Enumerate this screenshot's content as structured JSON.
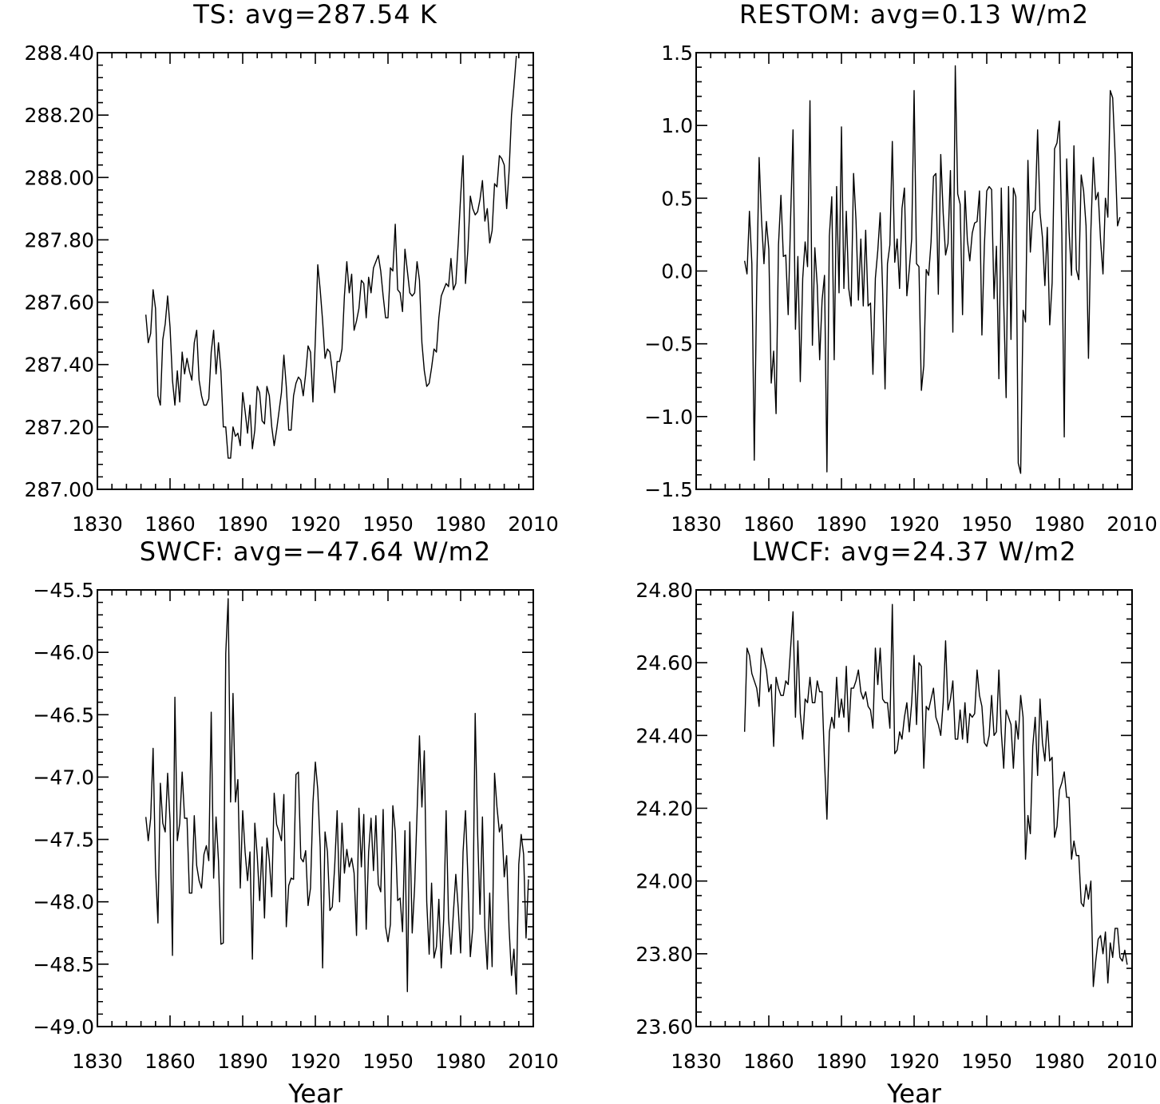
{
  "chart_data": [
    {
      "type": "line",
      "title": "TS: avg=287.54 K",
      "xlabel": "",
      "ylabel": "",
      "xlim": [
        1830,
        2010
      ],
      "ylim": [
        287.0,
        288.4
      ],
      "xticks": [
        "1830",
        "1860",
        "1890",
        "1920",
        "1950",
        "1980",
        "2010"
      ],
      "yticks": [
        "287.00",
        "287.20",
        "287.40",
        "287.60",
        "287.80",
        "288.00",
        "288.20",
        "288.40"
      ],
      "grid": false,
      "series": [
        {
          "x_start": 1850,
          "values": [
            287.56,
            287.47,
            287.5,
            287.64,
            287.58,
            287.3,
            287.27,
            287.48,
            287.53,
            287.62,
            287.52,
            287.35,
            287.27,
            287.38,
            287.28,
            287.44,
            287.37,
            287.42,
            287.38,
            287.35,
            287.47,
            287.51,
            287.35,
            287.3,
            287.27,
            287.27,
            287.29,
            287.44,
            287.51,
            287.37,
            287.47,
            287.38,
            287.2,
            287.2,
            287.1,
            287.1,
            287.2,
            287.17,
            287.18,
            287.14,
            287.31,
            287.25,
            287.18,
            287.27,
            287.13,
            287.19,
            287.33,
            287.31,
            287.22,
            287.21,
            287.33,
            287.3,
            287.2,
            287.14,
            287.19,
            287.25,
            287.31,
            287.43,
            287.33,
            287.19,
            287.19,
            287.3,
            287.34,
            287.36,
            287.35,
            287.3,
            287.37,
            287.46,
            287.44,
            287.28,
            287.48,
            287.72,
            287.64,
            287.54,
            287.42,
            287.45,
            287.44,
            287.38,
            287.31,
            287.41,
            287.41,
            287.45,
            287.62,
            287.73,
            287.63,
            287.69,
            287.51,
            287.54,
            287.58,
            287.67,
            287.66,
            287.55,
            287.68,
            287.63,
            287.71,
            287.73,
            287.75,
            287.7,
            287.62,
            287.55,
            287.55,
            287.71,
            287.7,
            287.85,
            287.64,
            287.63,
            287.57,
            287.77,
            287.7,
            287.63,
            287.62,
            287.63,
            287.73,
            287.67,
            287.47,
            287.38,
            287.33,
            287.34,
            287.39,
            287.45,
            287.44,
            287.55,
            287.62,
            287.64,
            287.66,
            287.65,
            287.74,
            287.64,
            287.66,
            287.79,
            287.94,
            288.07,
            287.66,
            287.77,
            287.94,
            287.9,
            287.88,
            287.89,
            287.93,
            287.99,
            287.86,
            287.9,
            287.79,
            287.83,
            287.98,
            287.97,
            288.07,
            288.06,
            288.04,
            287.9,
            288.02,
            288.2,
            288.29,
            288.39
          ]
        }
      ]
    },
    {
      "type": "line",
      "title": "RESTOM: avg=0.13 W/m2",
      "xlabel": "",
      "ylabel": "",
      "xlim": [
        1830,
        2010
      ],
      "ylim": [
        -1.5,
        1.5
      ],
      "xticks": [
        "1830",
        "1860",
        "1890",
        "1920",
        "1950",
        "1980",
        "2010"
      ],
      "yticks": [
        "−1.5",
        "−1.0",
        "−0.5",
        "0.0",
        "0.5",
        "1.0",
        "1.5"
      ],
      "grid": false,
      "series": [
        {
          "x_start": 1850,
          "values": [
            0.07,
            -0.02,
            0.41,
            0.05,
            -1.3,
            -0.1,
            0.78,
            0.35,
            0.05,
            0.34,
            0.15,
            -0.77,
            -0.55,
            -0.98,
            0.18,
            0.52,
            0.1,
            0.11,
            -0.3,
            0.36,
            0.97,
            -0.4,
            0.1,
            -0.76,
            -0.05,
            0.2,
            0.03,
            1.17,
            -0.51,
            0.16,
            -0.1,
            -0.61,
            -0.2,
            -0.03,
            -1.38,
            0.24,
            0.51,
            -0.61,
            0.58,
            -0.15,
            0.99,
            -0.12,
            0.41,
            -0.12,
            -0.24,
            0.67,
            0.35,
            -0.2,
            0.22,
            -0.24,
            0.28,
            -0.24,
            -0.22,
            -0.71,
            -0.05,
            0.14,
            0.4,
            -0.13,
            -0.81,
            0.05,
            0.18,
            0.89,
            0.06,
            0.22,
            -0.12,
            0.43,
            0.57,
            -0.17,
            0.01,
            0.22,
            1.24,
            0.05,
            0.03,
            -0.82,
            -0.65,
            0.01,
            -0.03,
            0.2,
            0.65,
            0.67,
            -0.16,
            0.8,
            0.4,
            0.11,
            0.19,
            0.69,
            -0.42,
            1.41,
            0.53,
            0.46,
            -0.3,
            0.55,
            0.21,
            0.07,
            0.26,
            0.33,
            0.34,
            0.55,
            -0.44,
            0.17,
            0.55,
            0.58,
            0.56,
            -0.19,
            0.17,
            -0.74,
            0.57,
            -0.22,
            -0.87,
            0.58,
            -0.47,
            0.57,
            0.51,
            -1.32,
            -1.39,
            -0.27,
            -0.35,
            0.76,
            0.13,
            0.4,
            0.42,
            0.97,
            0.4,
            0.23,
            -0.1,
            0.3,
            -0.37,
            -0.08,
            0.84,
            0.88,
            1.03,
            0.26,
            -1.14,
            0.77,
            0.27,
            -0.03,
            0.86,
            0.01,
            -0.06,
            0.66,
            0.55,
            0.31,
            -0.6,
            0.28,
            0.78,
            0.49,
            0.54,
            0.21,
            -0.02,
            0.5,
            0.37,
            1.24,
            1.19,
            0.8,
            0.31,
            0.37
          ]
        }
      ]
    },
    {
      "type": "line",
      "title": "SWCF: avg=−47.64 W/m2",
      "xlabel": "Year",
      "ylabel": "",
      "xlim": [
        1830,
        2010
      ],
      "ylim": [
        -49.0,
        -45.5
      ],
      "xticks": [
        "1830",
        "1860",
        "1890",
        "1920",
        "1950",
        "1980",
        "2010"
      ],
      "yticks": [
        "−49.0",
        "−48.5",
        "−48.0",
        "−47.5",
        "−47.0",
        "−46.5",
        "−46.0",
        "−45.5"
      ],
      "grid": false,
      "series": [
        {
          "x_start": 1850,
          "values": [
            -47.32,
            -47.51,
            -47.33,
            -46.77,
            -47.73,
            -48.17,
            -47.05,
            -47.37,
            -47.44,
            -46.97,
            -47.35,
            -48.43,
            -46.36,
            -47.51,
            -47.37,
            -46.96,
            -47.33,
            -47.33,
            -47.93,
            -47.93,
            -47.31,
            -47.71,
            -47.83,
            -47.89,
            -47.62,
            -47.55,
            -47.67,
            -46.48,
            -47.81,
            -47.32,
            -47.67,
            -48.34,
            -48.33,
            -46.01,
            -45.57,
            -47.2,
            -46.33,
            -47.2,
            -47.02,
            -47.89,
            -47.27,
            -47.6,
            -47.83,
            -47.6,
            -48.46,
            -47.37,
            -47.63,
            -47.99,
            -47.56,
            -48.13,
            -47.49,
            -47.67,
            -47.96,
            -47.13,
            -47.38,
            -47.44,
            -47.51,
            -47.14,
            -48.2,
            -47.87,
            -47.81,
            -47.82,
            -46.98,
            -46.96,
            -47.65,
            -47.68,
            -47.59,
            -48.03,
            -47.89,
            -47.21,
            -46.88,
            -47.1,
            -47.56,
            -48.53,
            -47.44,
            -47.6,
            -48.07,
            -48.04,
            -47.71,
            -47.27,
            -48.0,
            -47.37,
            -47.77,
            -47.58,
            -47.72,
            -47.65,
            -47.77,
            -48.27,
            -47.25,
            -47.72,
            -47.3,
            -48.22,
            -47.6,
            -47.33,
            -47.75,
            -47.31,
            -47.86,
            -47.92,
            -47.26,
            -48.2,
            -48.32,
            -48.18,
            -47.23,
            -47.44,
            -47.99,
            -47.97,
            -48.24,
            -47.43,
            -48.72,
            -47.36,
            -48.25,
            -47.88,
            -47.29,
            -46.67,
            -47.24,
            -46.79,
            -48.0,
            -48.42,
            -47.85,
            -48.45,
            -48.36,
            -47.98,
            -48.53,
            -48.14,
            -47.27,
            -48.13,
            -48.42,
            -48.09,
            -47.78,
            -48.05,
            -48.41,
            -47.6,
            -47.27,
            -47.81,
            -48.44,
            -48.21,
            -46.49,
            -47.44,
            -48.1,
            -47.32,
            -48.21,
            -48.54,
            -47.93,
            -48.52,
            -46.97,
            -47.24,
            -47.44,
            -47.38,
            -47.8,
            -47.63,
            -48.21,
            -48.59,
            -48.38,
            -48.74,
            -47.7,
            -47.46,
            -47.62,
            -48.29,
            -47.82
          ]
        }
      ]
    },
    {
      "type": "line",
      "title": "LWCF: avg=24.37 W/m2",
      "xlabel": "Year",
      "ylabel": "",
      "xlim": [
        1830,
        2010
      ],
      "ylim": [
        23.6,
        24.8
      ],
      "xticks": [
        "1830",
        "1860",
        "1890",
        "1920",
        "1950",
        "1980",
        "2010"
      ],
      "yticks": [
        "23.60",
        "23.80",
        "24.00",
        "24.20",
        "24.40",
        "24.60",
        "24.80"
      ],
      "grid": false,
      "series": [
        {
          "x_start": 1850,
          "values": [
            24.41,
            24.64,
            24.62,
            24.57,
            24.55,
            24.53,
            24.48,
            24.64,
            24.61,
            24.58,
            24.52,
            24.54,
            24.37,
            24.56,
            24.53,
            24.51,
            24.51,
            24.55,
            24.54,
            24.64,
            24.74,
            24.45,
            24.66,
            24.46,
            24.39,
            24.5,
            24.49,
            24.56,
            24.49,
            24.49,
            24.55,
            24.52,
            24.52,
            24.33,
            24.17,
            24.41,
            24.45,
            24.42,
            24.56,
            24.45,
            24.5,
            24.45,
            24.59,
            24.41,
            24.53,
            24.53,
            24.55,
            24.58,
            24.52,
            24.5,
            24.52,
            24.48,
            24.47,
            24.42,
            24.64,
            24.54,
            24.64,
            24.5,
            24.49,
            24.49,
            24.42,
            24.76,
            24.35,
            24.36,
            24.41,
            24.39,
            24.45,
            24.49,
            24.41,
            24.49,
            24.62,
            24.43,
            24.6,
            24.59,
            24.31,
            24.48,
            24.47,
            24.5,
            24.53,
            24.45,
            24.43,
            24.4,
            24.49,
            24.66,
            24.47,
            24.5,
            24.55,
            24.39,
            24.39,
            24.47,
            24.39,
            24.49,
            24.38,
            24.46,
            24.45,
            24.46,
            24.58,
            24.51,
            24.48,
            24.38,
            24.37,
            24.4,
            24.51,
            24.4,
            24.41,
            24.58,
            24.41,
            24.31,
            24.47,
            24.45,
            24.43,
            24.31,
            24.44,
            24.39,
            24.51,
            24.45,
            24.06,
            24.18,
            24.13,
            24.37,
            24.45,
            24.29,
            24.5,
            24.38,
            24.33,
            24.44,
            24.33,
            24.34,
            24.12,
            24.15,
            24.25,
            24.27,
            24.3,
            24.23,
            24.23,
            24.06,
            24.11,
            24.07,
            24.07,
            23.94,
            23.93,
            23.99,
            23.95,
            24.0,
            23.71,
            23.78,
            23.84,
            23.85,
            23.8,
            23.86,
            23.72,
            23.83,
            23.79,
            23.87,
            23.87,
            23.79,
            23.78,
            23.81,
            23.77
          ]
        }
      ]
    }
  ]
}
